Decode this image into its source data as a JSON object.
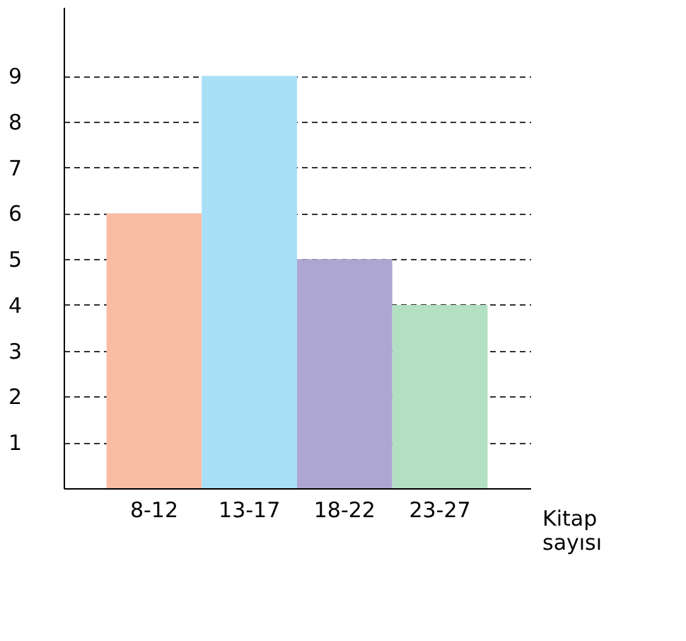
{
  "chart_data": {
    "type": "bar",
    "xlabel": "Kitap sayısı",
    "categories": [
      "8-12",
      "13-17",
      "18-22",
      "23-27"
    ],
    "values": [
      6,
      9,
      5,
      4
    ],
    "colors": [
      "#f9bca5",
      "#a9dff7",
      "#ada6d3",
      "#b3dfc3"
    ],
    "ylim": [
      0,
      10.5
    ],
    "yticks": [
      1,
      2,
      3,
      4,
      5,
      6,
      7,
      8,
      9
    ],
    "grid": "y",
    "line_style": "dashed"
  }
}
